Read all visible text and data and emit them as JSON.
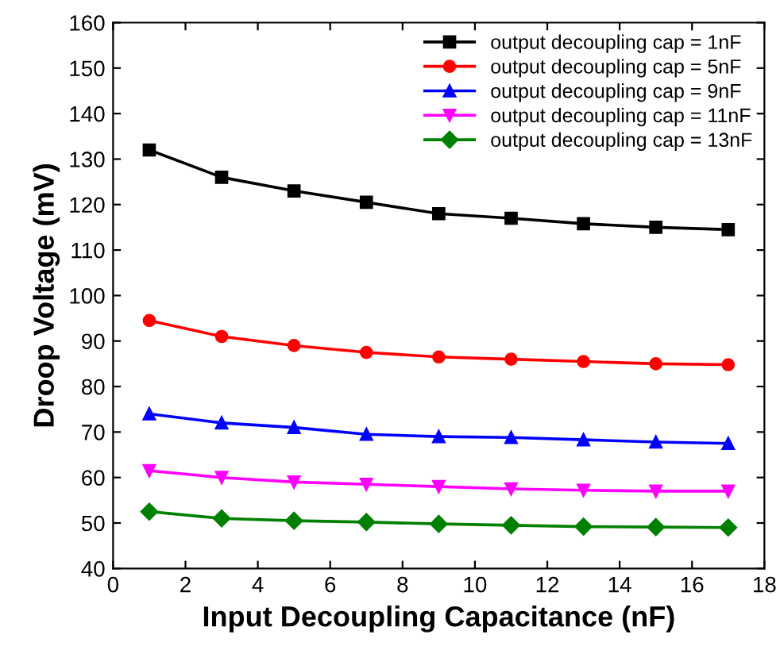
{
  "chart_data": {
    "type": "line",
    "xlabel": "Input Decoupling Capacitance (nF)",
    "ylabel": "Droop Voltage (mV)",
    "x": [
      1,
      3,
      5,
      7,
      9,
      11,
      13,
      15,
      17
    ],
    "xlim": [
      0,
      18
    ],
    "xticks": [
      0,
      2,
      4,
      6,
      8,
      10,
      12,
      14,
      16,
      18
    ],
    "ylim": [
      40,
      160
    ],
    "yticks": [
      40,
      50,
      60,
      70,
      80,
      90,
      100,
      110,
      120,
      130,
      140,
      150,
      160
    ],
    "legend": "top right",
    "grid": false,
    "line_style": "solid",
    "series": [
      {
        "name": "output decoupling cap = 1nF",
        "color": "#000000",
        "marker": "square",
        "values": [
          132,
          126,
          123,
          120.5,
          118,
          117,
          115.8,
          115,
          114.5
        ]
      },
      {
        "name": "output decoupling cap = 5nF",
        "color": "#ff0000",
        "marker": "circle",
        "values": [
          94.5,
          91,
          89,
          87.5,
          86.5,
          86,
          85.5,
          85,
          84.8
        ]
      },
      {
        "name": "output decoupling cap = 9nF",
        "color": "#0000ff",
        "marker": "triangle",
        "values": [
          74,
          72,
          71,
          69.5,
          69,
          68.8,
          68.3,
          67.8,
          67.5
        ]
      },
      {
        "name": "output decoupling cap = 11nF",
        "color": "#ff00ff",
        "marker": "triangle_down",
        "values": [
          61.5,
          60,
          59,
          58.5,
          58,
          57.5,
          57.2,
          57,
          57
        ]
      },
      {
        "name": "output decoupling cap = 13nF",
        "color": "#008000",
        "marker": "diamond",
        "values": [
          52.5,
          51,
          50.5,
          50.2,
          49.8,
          49.5,
          49.2,
          49.1,
          49
        ]
      }
    ]
  }
}
